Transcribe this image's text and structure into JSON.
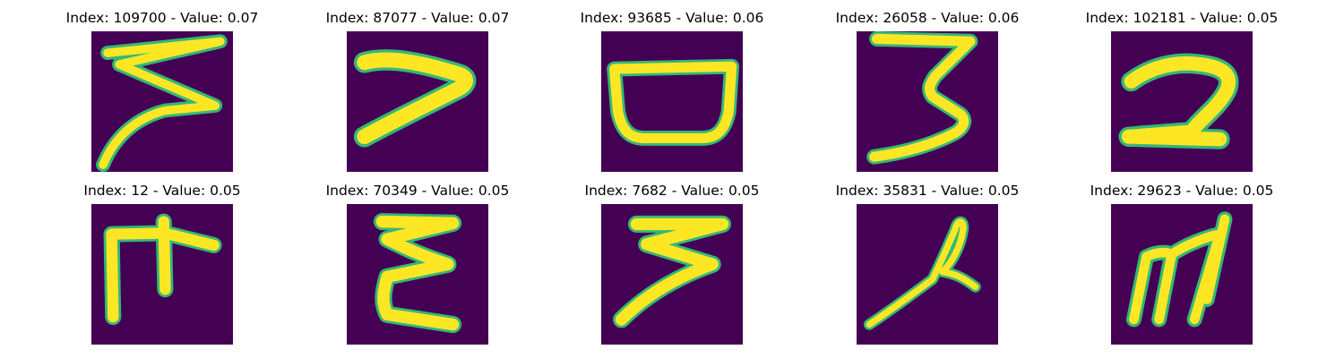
{
  "colors": {
    "background": "#440154",
    "stroke": "#fde725",
    "edge_1": "#35b779",
    "edge_2": "#21918c"
  },
  "panels": [
    {
      "title": "Index: 109700 - Value: 0.07",
      "glyph": "stroke-z-tail"
    },
    {
      "title": "Index: 87077 - Value: 0.07",
      "glyph": "stroke-seven"
    },
    {
      "title": "Index: 93685 - Value: 0.06",
      "glyph": "stroke-bowl"
    },
    {
      "title": "Index: 26058 - Value: 0.06",
      "glyph": "stroke-three"
    },
    {
      "title": "Index: 102181 - Value: 0.05",
      "glyph": "stroke-two"
    },
    {
      "title": "Index: 12 - Value: 0.05",
      "glyph": "stroke-comb"
    },
    {
      "title": "Index: 70349 - Value: 0.05",
      "glyph": "stroke-e"
    },
    {
      "title": "Index: 7682 - Value: 0.05",
      "glyph": "stroke-flat-three"
    },
    {
      "title": "Index: 35831 - Value: 0.05",
      "glyph": "stroke-loop"
    },
    {
      "title": "Index: 29623 - Value: 0.05",
      "glyph": "stroke-m"
    }
  ]
}
